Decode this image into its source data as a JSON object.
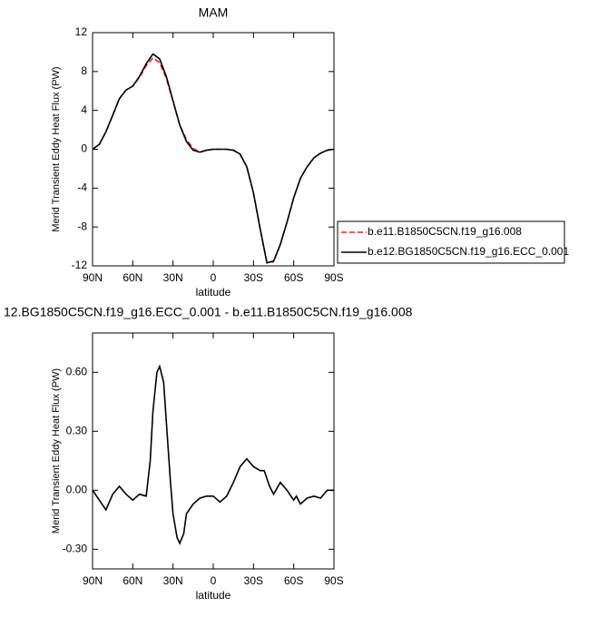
{
  "chart_data": [
    {
      "type": "line",
      "title": "MAM",
      "xlabel": "latitude",
      "ylabel": "Merid Transient Eddy Heat Flux (PW)",
      "x": [
        90,
        85,
        80,
        75,
        70,
        65,
        60,
        55,
        50,
        45,
        40,
        35,
        30,
        25,
        20,
        15,
        10,
        5,
        0,
        -5,
        -10,
        -15,
        -20,
        -25,
        -30,
        -35,
        -40,
        -45,
        -50,
        -55,
        -60,
        -65,
        -70,
        -75,
        -80,
        -85,
        -90
      ],
      "xlim": [
        90,
        -90
      ],
      "xticks": [
        {
          "value": 90,
          "label": "90N"
        },
        {
          "value": 60,
          "label": "60N"
        },
        {
          "value": 30,
          "label": "30N"
        },
        0,
        {
          "value": -30,
          "label": "30S"
        },
        {
          "value": -60,
          "label": "60S"
        },
        {
          "value": -90,
          "label": "90S"
        }
      ],
      "ylim": [
        -12,
        12
      ],
      "yticks": [
        -12,
        -8,
        -4,
        0,
        4,
        8,
        12
      ],
      "legend": "right",
      "series": [
        {
          "name": "b.e11.B1850C5CN.f19_g16.008",
          "color": "#e8231f",
          "line_style": "dashed",
          "values": [
            0,
            0.5,
            1.8,
            3.5,
            5.2,
            6.1,
            6.5,
            7.4,
            8.6,
            9.4,
            8.9,
            7.3,
            4.9,
            2.5,
            1.0,
            0.1,
            -0.3,
            -0.1,
            0,
            0,
            0,
            -0.1,
            -0.5,
            -1.8,
            -4.5,
            -8.2,
            -11.6,
            -11.6,
            -9.8,
            -7.5,
            -5,
            -3,
            -1.8,
            -0.9,
            -0.4,
            -0.1,
            0
          ]
        },
        {
          "name": "b.e12.BG1850C5CN.f19_g16.ECC_0.001",
          "color": "#000000",
          "line_style": "solid",
          "values": [
            0,
            0.5,
            1.8,
            3.5,
            5.2,
            6.1,
            6.5,
            7.5,
            8.8,
            9.8,
            9.3,
            7.5,
            5.0,
            2.5,
            0.8,
            -0.1,
            -0.3,
            -0.1,
            0,
            0,
            0,
            -0.1,
            -0.5,
            -1.8,
            -4.5,
            -8.2,
            -11.7,
            -11.5,
            -9.8,
            -7.5,
            -5,
            -3,
            -1.8,
            -0.9,
            -0.4,
            -0.1,
            0
          ]
        }
      ]
    },
    {
      "type": "line",
      "title": "12.BG1850C5CN.f19_g16.ECC_0.001 - b.e11.B1850C5CN.f19_g16.008",
      "xlabel": "latitude",
      "ylabel": "Merid Transient Eddy Heat Flux (PW)",
      "x": [
        90,
        85,
        80,
        75,
        70,
        65,
        60,
        55,
        50,
        47,
        45,
        42,
        40,
        37,
        35,
        32,
        30,
        27,
        25,
        22,
        20,
        15,
        10,
        5,
        0,
        -5,
        -10,
        -15,
        -20,
        -25,
        -30,
        -35,
        -38,
        -42,
        -45,
        -50,
        -55,
        -60,
        -62,
        -65,
        -70,
        -75,
        -80,
        -85,
        -90
      ],
      "xlim": [
        90,
        -90
      ],
      "xticks": [
        {
          "value": 90,
          "label": "90N"
        },
        {
          "value": 60,
          "label": "60N"
        },
        {
          "value": 30,
          "label": "30N"
        },
        0,
        {
          "value": -30,
          "label": "30S"
        },
        {
          "value": -60,
          "label": "60S"
        },
        {
          "value": -90,
          "label": "90S"
        }
      ],
      "ylim": [
        -0.4,
        0.8
      ],
      "yticks": [
        {
          "value": -0.3,
          "label": "-0.30"
        },
        {
          "value": 0,
          "label": "0.00"
        },
        {
          "value": 0.3,
          "label": "0.30"
        },
        {
          "value": 0.6,
          "label": "0.60"
        }
      ],
      "series": [
        {
          "color": "#000000",
          "line_style": "solid",
          "values": [
            0,
            -0.05,
            -0.1,
            -0.02,
            0.02,
            -0.02,
            -0.05,
            -0.02,
            -0.03,
            0.15,
            0.4,
            0.6,
            0.63,
            0.55,
            0.35,
            0.05,
            -0.12,
            -0.24,
            -0.27,
            -0.22,
            -0.12,
            -0.07,
            -0.04,
            -0.03,
            -0.03,
            -0.06,
            -0.03,
            0.04,
            0.12,
            0.16,
            0.12,
            0.1,
            0.1,
            0.02,
            -0.02,
            0.04,
            0,
            -0.05,
            -0.03,
            -0.07,
            -0.04,
            -0.03,
            -0.04,
            0,
            0
          ]
        }
      ]
    }
  ]
}
